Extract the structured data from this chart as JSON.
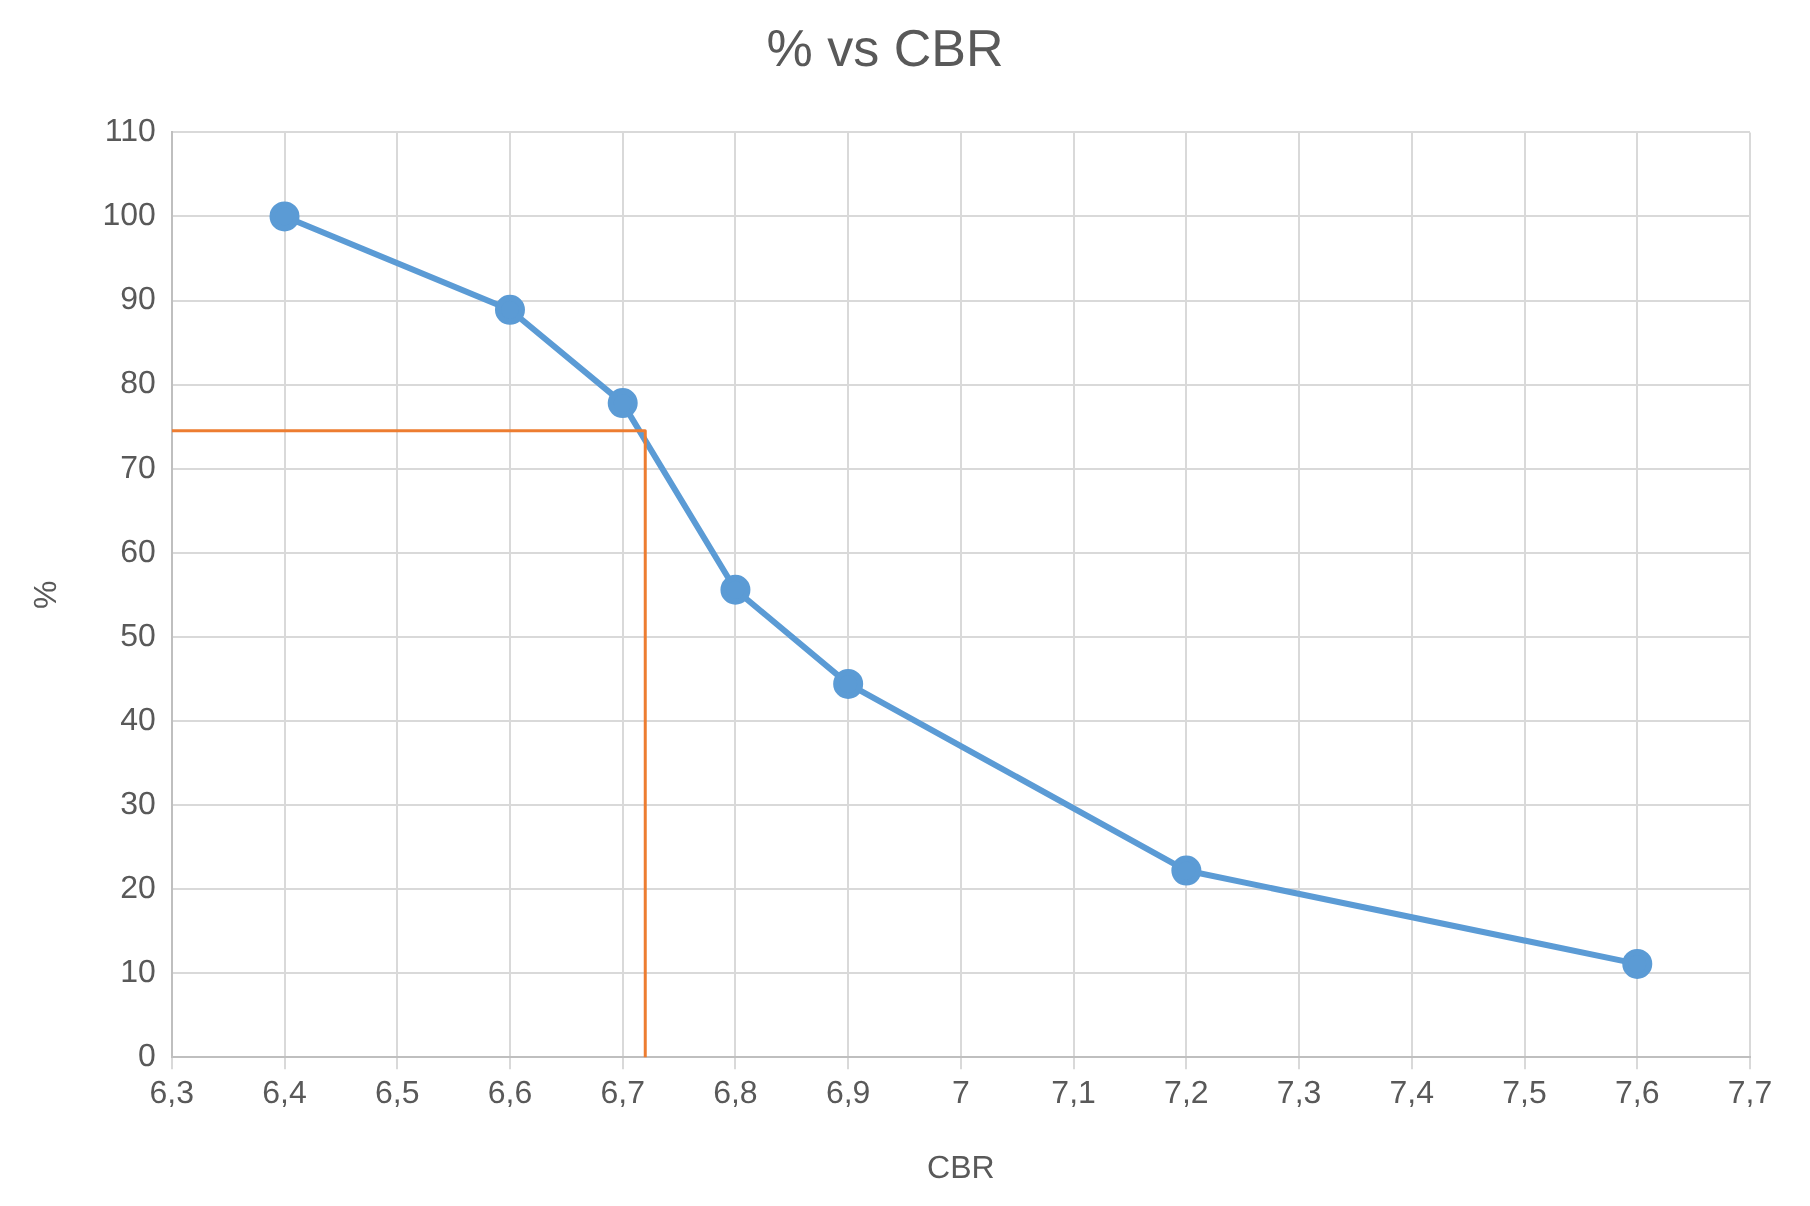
{
  "chart_data": {
    "type": "line",
    "title": "% vs CBR",
    "xlabel": "CBR",
    "ylabel": "%",
    "xlim": [
      6.3,
      7.7
    ],
    "xticks": [
      {
        "value": 6.3,
        "label": "6,3"
      },
      {
        "value": 6.4,
        "label": "6,4"
      },
      {
        "value": 6.5,
        "label": "6,5"
      },
      {
        "value": 6.6,
        "label": "6,6"
      },
      {
        "value": 6.7,
        "label": "6,7"
      },
      {
        "value": 6.8,
        "label": "6,8"
      },
      {
        "value": 6.9,
        "label": "6,9"
      },
      7,
      {
        "value": 7.1,
        "label": "7,1"
      },
      {
        "value": 7.2,
        "label": "7,2"
      },
      {
        "value": 7.3,
        "label": "7,3"
      },
      {
        "value": 7.4,
        "label": "7,4"
      },
      {
        "value": 7.5,
        "label": "7,5"
      },
      {
        "value": 7.6,
        "label": "7,6"
      },
      {
        "value": 7.7,
        "label": "7,7"
      }
    ],
    "ylim": [
      0,
      110
    ],
    "yticks": [
      0,
      10,
      20,
      30,
      40,
      50,
      60,
      70,
      80,
      90,
      100,
      110
    ],
    "grid": true,
    "legend": false,
    "series": [
      {
        "type": "line",
        "color": "#ed7d31",
        "marker": "none",
        "x": [
          6.3,
          6.72,
          6.72
        ],
        "values": [
          74.5,
          74.5,
          0
        ]
      },
      {
        "type": "line",
        "color": "#5b9bd5",
        "marker": "circle",
        "x": [
          6.4,
          6.6,
          6.7,
          6.8,
          6.9,
          7.2,
          7.6
        ],
        "values": [
          100,
          88.9,
          77.8,
          55.6,
          44.4,
          22.2,
          11.1
        ]
      }
    ]
  }
}
